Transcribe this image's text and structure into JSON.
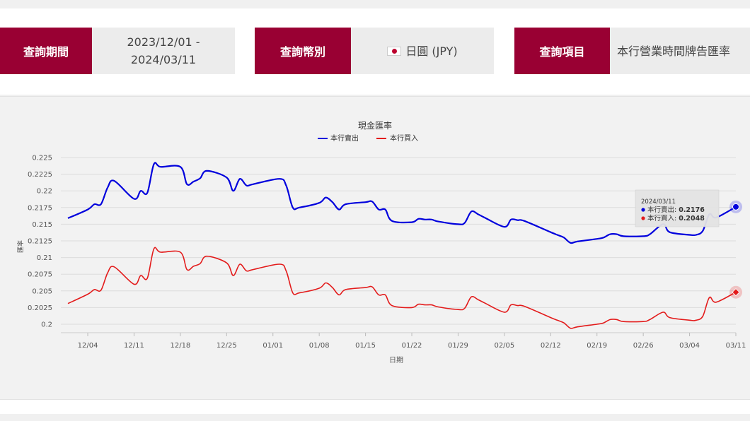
{
  "filters": {
    "period_label": "查詢期間",
    "period_start": "2023/12/01 -",
    "period_end": "2024/03/11",
    "currency_label": "查詢幣別",
    "currency_value": "日圓 (JPY)",
    "currency_flag": "japan-flag-icon",
    "item_label": "查詢項目",
    "item_value": "本行營業時間牌告匯率"
  },
  "colors": {
    "brand": "#990033",
    "sell": "#0000dd",
    "buy": "#e31b1b"
  },
  "chart_data": {
    "type": "line",
    "title": "現金匯率",
    "xlabel": "日期",
    "ylabel": "匯率",
    "ylim": [
      0.2,
      0.225
    ],
    "yticks": [
      "0.2",
      "0.2025",
      "0.205",
      "0.2075",
      "0.21",
      "0.2125",
      "0.215",
      "0.2175",
      "0.22",
      "0.2225",
      "0.225"
    ],
    "xticks": [
      "12/04",
      "12/11",
      "12/18",
      "12/25",
      "01/01",
      "01/08",
      "01/15",
      "01/22",
      "01/29",
      "02/05",
      "02/12",
      "02/19",
      "02/26",
      "03/04",
      "03/11"
    ],
    "legend": "top-center",
    "grid": true,
    "x": [
      "2023-12-01",
      "2023-12-04",
      "2023-12-05",
      "2023-12-06",
      "2023-12-07",
      "2023-12-08",
      "2023-12-11",
      "2023-12-12",
      "2023-12-13",
      "2023-12-14",
      "2023-12-15",
      "2023-12-18",
      "2023-12-19",
      "2023-12-20",
      "2023-12-21",
      "2023-12-22",
      "2023-12-25",
      "2023-12-26",
      "2023-12-27",
      "2023-12-28",
      "2023-12-29",
      "2024-01-02",
      "2024-01-03",
      "2024-01-04",
      "2024-01-05",
      "2024-01-08",
      "2024-01-09",
      "2024-01-10",
      "2024-01-11",
      "2024-01-12",
      "2024-01-15",
      "2024-01-16",
      "2024-01-17",
      "2024-01-18",
      "2024-01-19",
      "2024-01-22",
      "2024-01-23",
      "2024-01-24",
      "2024-01-25",
      "2024-01-26",
      "2024-01-29",
      "2024-01-30",
      "2024-01-31",
      "2024-02-01",
      "2024-02-02",
      "2024-02-05",
      "2024-02-06",
      "2024-02-07",
      "2024-02-08",
      "2024-02-12",
      "2024-02-13",
      "2024-02-14",
      "2024-02-15",
      "2024-02-16",
      "2024-02-19",
      "2024-02-20",
      "2024-02-21",
      "2024-02-22",
      "2024-02-23",
      "2024-02-26",
      "2024-02-27",
      "2024-02-29",
      "2024-03-01",
      "2024-03-04",
      "2024-03-05",
      "2024-03-06",
      "2024-03-07",
      "2024-03-08",
      "2024-03-11"
    ],
    "series": [
      {
        "name": "本行賣出",
        "values": [
          0.2159,
          0.2172,
          0.218,
          0.218,
          0.2205,
          0.2215,
          0.2188,
          0.22,
          0.2197,
          0.224,
          0.2236,
          0.2236,
          0.221,
          0.2214,
          0.2219,
          0.223,
          0.222,
          0.22,
          0.2218,
          0.2208,
          0.221,
          0.2218,
          0.2208,
          0.2175,
          0.2175,
          0.2182,
          0.219,
          0.2183,
          0.2172,
          0.218,
          0.2183,
          0.2184,
          0.2172,
          0.2172,
          0.2155,
          0.2153,
          0.2158,
          0.2157,
          0.2157,
          0.2154,
          0.215,
          0.2152,
          0.2169,
          0.2165,
          0.216,
          0.2146,
          0.2157,
          0.2156,
          0.2155,
          0.2138,
          0.2134,
          0.213,
          0.2122,
          0.2124,
          0.2128,
          0.213,
          0.2135,
          0.2135,
          0.2132,
          0.2132,
          0.2135,
          0.215,
          0.2138,
          0.2134,
          0.2134,
          0.214,
          0.2165,
          0.216,
          0.2176
        ]
      },
      {
        "name": "本行買入",
        "values": [
          0.2031,
          0.2045,
          0.2052,
          0.2051,
          0.2077,
          0.2086,
          0.206,
          0.2073,
          0.2069,
          0.2113,
          0.2108,
          0.2108,
          0.2082,
          0.2087,
          0.2091,
          0.2102,
          0.2092,
          0.2073,
          0.209,
          0.208,
          0.2082,
          0.209,
          0.208,
          0.2047,
          0.2047,
          0.2054,
          0.2062,
          0.2055,
          0.2044,
          0.2052,
          0.2055,
          0.2056,
          0.2044,
          0.2044,
          0.2028,
          0.2025,
          0.203,
          0.2029,
          0.2029,
          0.2026,
          0.2022,
          0.2024,
          0.2041,
          0.2037,
          0.2032,
          0.2018,
          0.2029,
          0.2028,
          0.2027,
          0.201,
          0.2006,
          0.2002,
          0.1994,
          0.1996,
          0.2,
          0.2002,
          0.2007,
          0.2007,
          0.2004,
          0.2004,
          0.2007,
          0.2018,
          0.201,
          0.2006,
          0.2006,
          0.2012,
          0.204,
          0.2033,
          0.2048
        ]
      }
    ],
    "tooltip": {
      "date": "2024/03/11",
      "sell_label": "本行賣出:",
      "sell_value": "0.2176",
      "buy_label": "本行買入:",
      "buy_value": "0.2048"
    }
  }
}
